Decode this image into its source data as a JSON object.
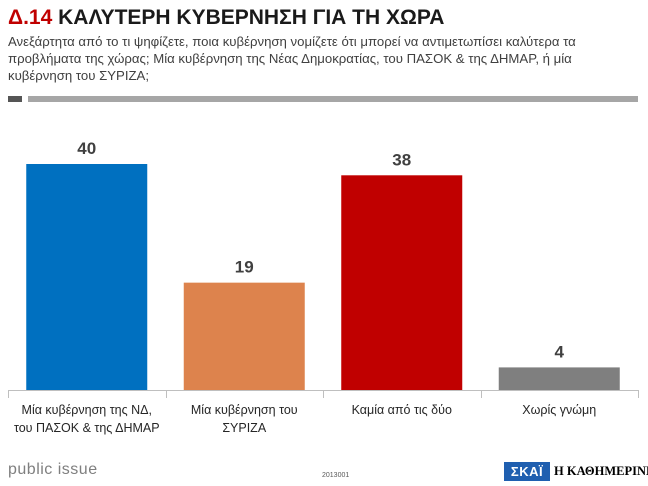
{
  "header": {
    "code": "Δ.14",
    "title": "ΚΑΛΥΤΕΡΗ ΚΥΒΕΡΝΗΣΗ ΓΙΑ ΤΗ ΧΩΡΑ",
    "question": "Ανεξάρτητα από το τι ψηφίζετε, ποια κυβέρνηση νομίζετε ότι μπορεί να αντιμετωπίσει καλύτερα τα προβλήματα της χώρας; Μία κυβέρνηση της Νέας Δημοκρατίας, του ΠΑΣΟΚ & της ΔΗΜΑΡ, ή μία κυβέρνηση του ΣΥΡΙΖΑ;"
  },
  "chart_data": {
    "type": "bar",
    "categories": [
      [
        "Μία κυβέρνηση της ΝΔ,",
        "του ΠΑΣΟΚ & της ΔΗΜΑΡ"
      ],
      [
        "Μία κυβέρνηση του",
        "ΣΥΡΙΖΑ"
      ],
      [
        "Καμία από τις δύο"
      ],
      [
        "Χωρίς γνώμη"
      ]
    ],
    "values": [
      40,
      19,
      38,
      4
    ],
    "colors": [
      "#0070c0",
      "#dd834d",
      "#c00000",
      "#7f7f7f"
    ],
    "ylim": [
      0,
      40
    ],
    "grid": false
  },
  "footer": {
    "brand": "public issue",
    "code": "2013001",
    "logo_left": "ΣΚΑΪ",
    "logo_right": "Η ΚΑΘΗΜΕΡΙΝΗ"
  }
}
